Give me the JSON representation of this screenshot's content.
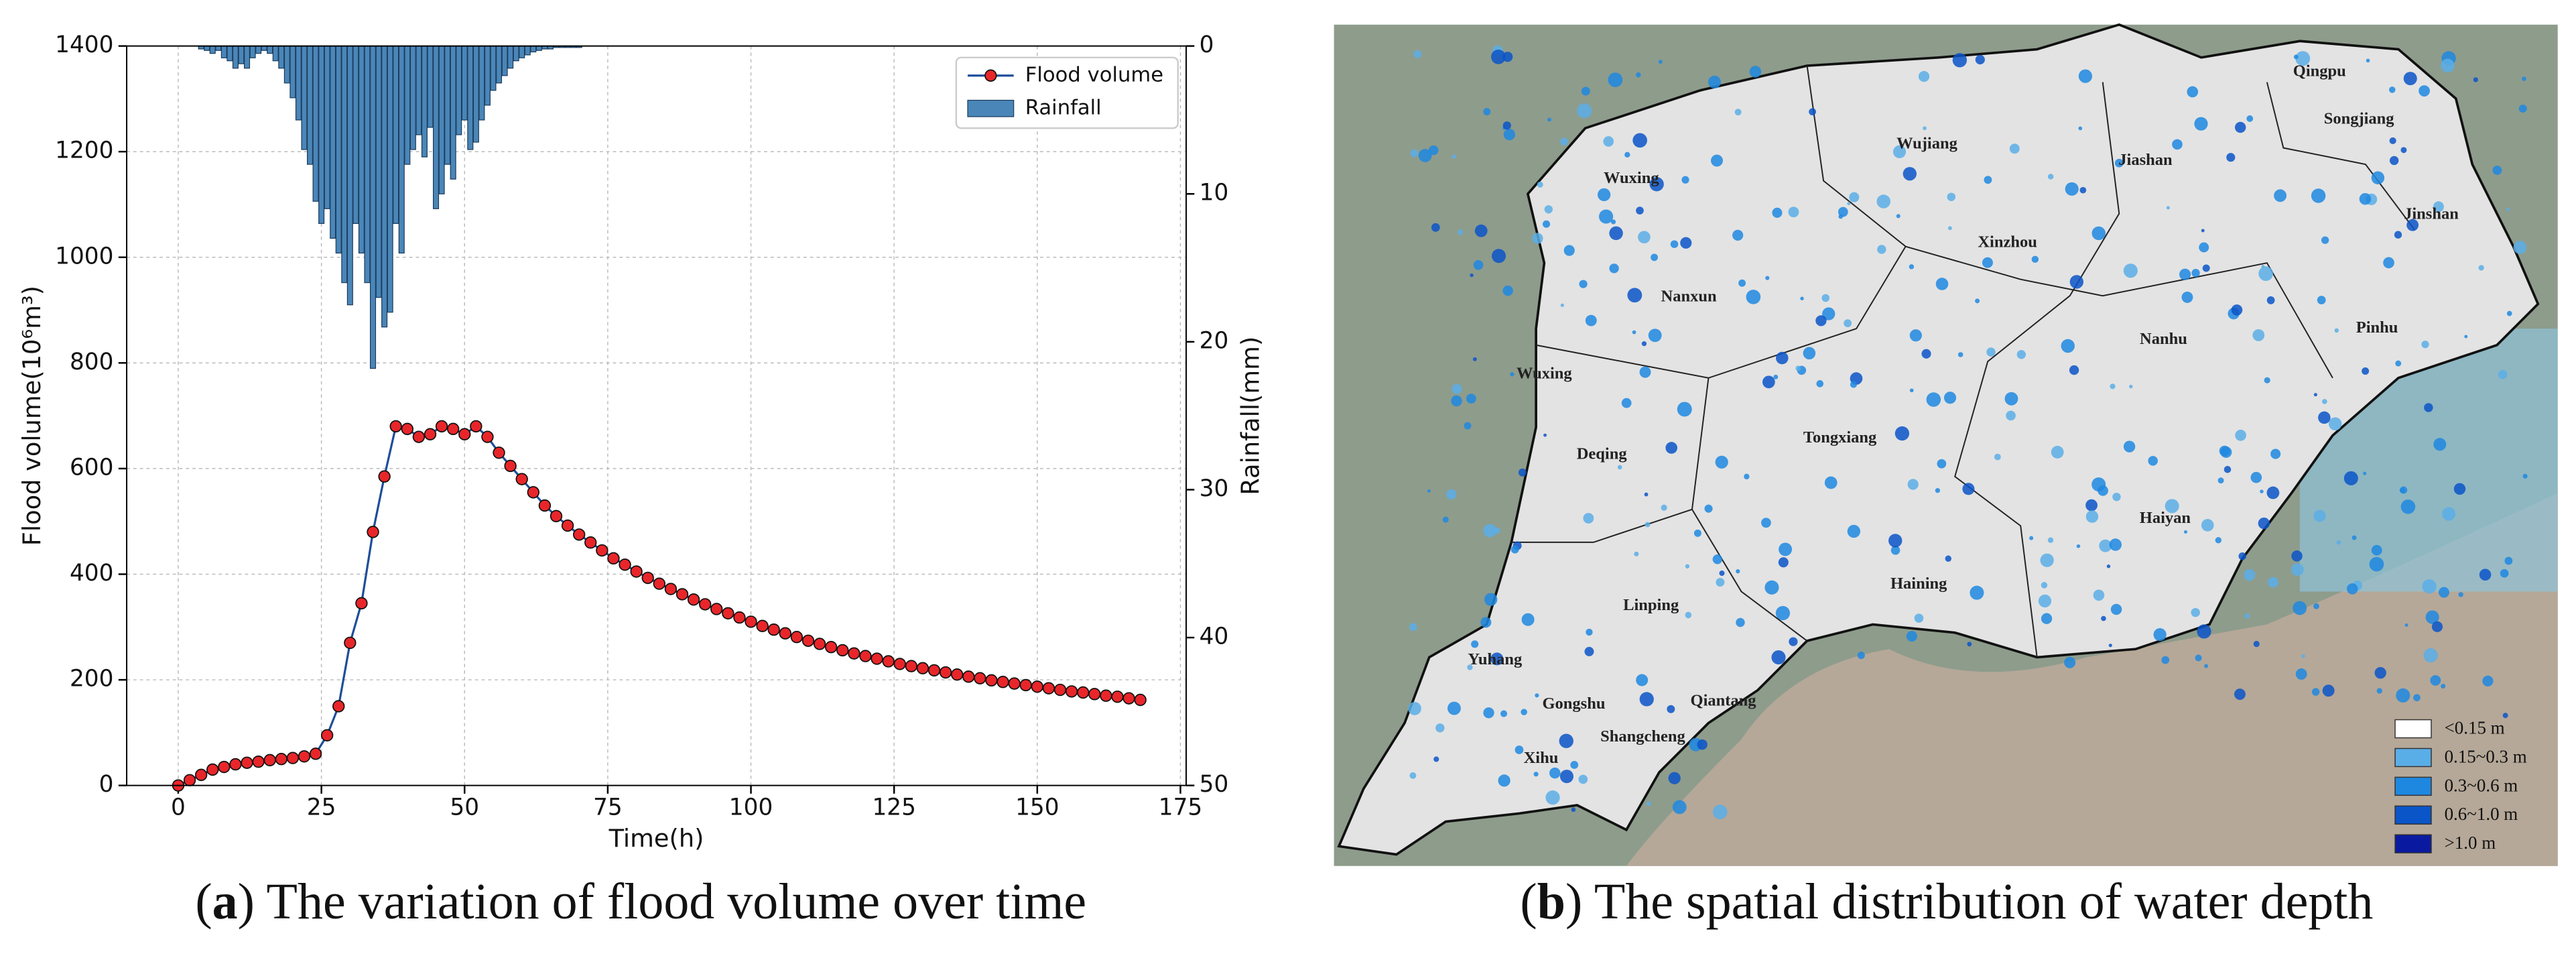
{
  "chart_data": {
    "type": "line_bar",
    "xlabel": "Time(h)",
    "ylabel": "Flood volume(10⁶m³)",
    "y2label": "Rainfall(mm)",
    "xlim": [
      -9,
      176
    ],
    "xticks": [
      0,
      25,
      50,
      75,
      100,
      125,
      150,
      175
    ],
    "ylim": [
      0,
      1400
    ],
    "yticks": [
      0,
      200,
      400,
      600,
      800,
      1000,
      1200,
      1400
    ],
    "y2lim": [
      50,
      0
    ],
    "y2ticks": [
      0,
      10,
      20,
      30,
      40,
      50
    ],
    "grid": true,
    "legend": "upper right",
    "series": [
      {
        "name": "Flood volume",
        "type": "line",
        "color": "#1f4e9a",
        "marker_color": "#e8262a",
        "x": [
          0,
          2,
          4,
          6,
          8,
          10,
          12,
          14,
          16,
          18,
          20,
          22,
          24,
          26,
          28,
          30,
          32,
          34,
          36,
          38,
          40,
          42,
          44,
          46,
          48,
          50,
          52,
          54,
          56,
          58,
          60,
          62,
          64,
          66,
          68,
          70,
          72,
          74,
          76,
          78,
          80,
          82,
          84,
          86,
          88,
          90,
          92,
          94,
          96,
          98,
          100,
          102,
          104,
          106,
          108,
          110,
          112,
          114,
          116,
          118,
          120,
          122,
          124,
          126,
          128,
          130,
          132,
          134,
          136,
          138,
          140,
          142,
          144,
          146,
          148,
          150,
          152,
          154,
          156,
          158,
          160,
          162,
          164,
          166,
          168
        ],
        "values": [
          0,
          10,
          20,
          30,
          35,
          40,
          43,
          45,
          48,
          50,
          52,
          55,
          60,
          95,
          150,
          270,
          345,
          480,
          585,
          680,
          675,
          660,
          665,
          680,
          675,
          665,
          680,
          660,
          630,
          605,
          580,
          555,
          530,
          510,
          492,
          475,
          460,
          445,
          430,
          418,
          405,
          393,
          382,
          372,
          362,
          352,
          343,
          334,
          326,
          318,
          310,
          302,
          295,
          288,
          281,
          274,
          268,
          262,
          256,
          250,
          245,
          240,
          235,
          230,
          226,
          222,
          218,
          214,
          210,
          206,
          203,
          199,
          196,
          193,
          190,
          187,
          184,
          181,
          178,
          176,
          173,
          170,
          168,
          165,
          162
        ]
      },
      {
        "name": "Rainfall",
        "type": "bar",
        "axis": "y2",
        "color": "#4a86b8",
        "x": [
          4,
          5,
          6,
          7,
          8,
          9,
          10,
          11,
          12,
          13,
          14,
          15,
          16,
          17,
          18,
          19,
          20,
          21,
          22,
          23,
          24,
          25,
          26,
          27,
          28,
          29,
          30,
          31,
          32,
          33,
          34,
          35,
          36,
          37,
          38,
          39,
          40,
          41,
          42,
          43,
          44,
          45,
          46,
          47,
          48,
          49,
          50,
          51,
          52,
          53,
          54,
          55,
          56,
          57,
          58,
          59,
          60,
          61,
          62,
          63,
          64,
          65,
          66,
          67,
          68,
          69,
          70
        ],
        "values": [
          0.2,
          0.3,
          0.5,
          0.3,
          0.8,
          1.0,
          1.5,
          1.2,
          1.5,
          0.8,
          0.5,
          0.3,
          0.5,
          1.0,
          1.5,
          2.5,
          3.5,
          5.0,
          7.0,
          8.0,
          10.5,
          12.0,
          11.0,
          13.0,
          14.0,
          16.0,
          17.5,
          12.0,
          14.0,
          16.0,
          21.8,
          17.0,
          19.0,
          18.0,
          12.0,
          14.0,
          8.0,
          7.0,
          6.0,
          7.5,
          5.5,
          11.0,
          10.0,
          8.0,
          9.0,
          6.0,
          5.0,
          7.0,
          6.5,
          5.0,
          4.0,
          3.0,
          2.5,
          2.0,
          1.5,
          1.0,
          0.8,
          0.6,
          0.4,
          0.3,
          0.2,
          0.2,
          0.1,
          0.1,
          0.1,
          0.1,
          0.1
        ]
      }
    ]
  },
  "captions": {
    "a": [
      "(",
      "a",
      ") The variation of flood volume over time"
    ],
    "b": [
      "(",
      "b",
      ") The spatial distribution of water depth"
    ]
  },
  "map": {
    "labels": [
      "Qingpu",
      "Songjiang",
      "Wujiang",
      "Wuxing",
      "Jiashan",
      "Jinshan",
      "Xinzhou",
      "Nanxun",
      "Nanhu",
      "Pinhu",
      "Wuxing",
      "Deqing",
      "Tongxiang",
      "Haiyan",
      "Haining",
      "Linping",
      "Yuhang",
      "Gongshu",
      "Qiantang",
      "Shangcheng",
      "Xihu"
    ],
    "legend": [
      {
        "label": "<0.15 m",
        "color": "#ffffff"
      },
      {
        "label": "0.15~0.3 m",
        "color": "#5aaee8"
      },
      {
        "label": "0.3~0.6 m",
        "color": "#1e88e0"
      },
      {
        "label": "0.6~1.0 m",
        "color": "#0a55c8"
      },
      {
        "label": ">1.0 m",
        "color": "#0a1aa0"
      }
    ]
  }
}
